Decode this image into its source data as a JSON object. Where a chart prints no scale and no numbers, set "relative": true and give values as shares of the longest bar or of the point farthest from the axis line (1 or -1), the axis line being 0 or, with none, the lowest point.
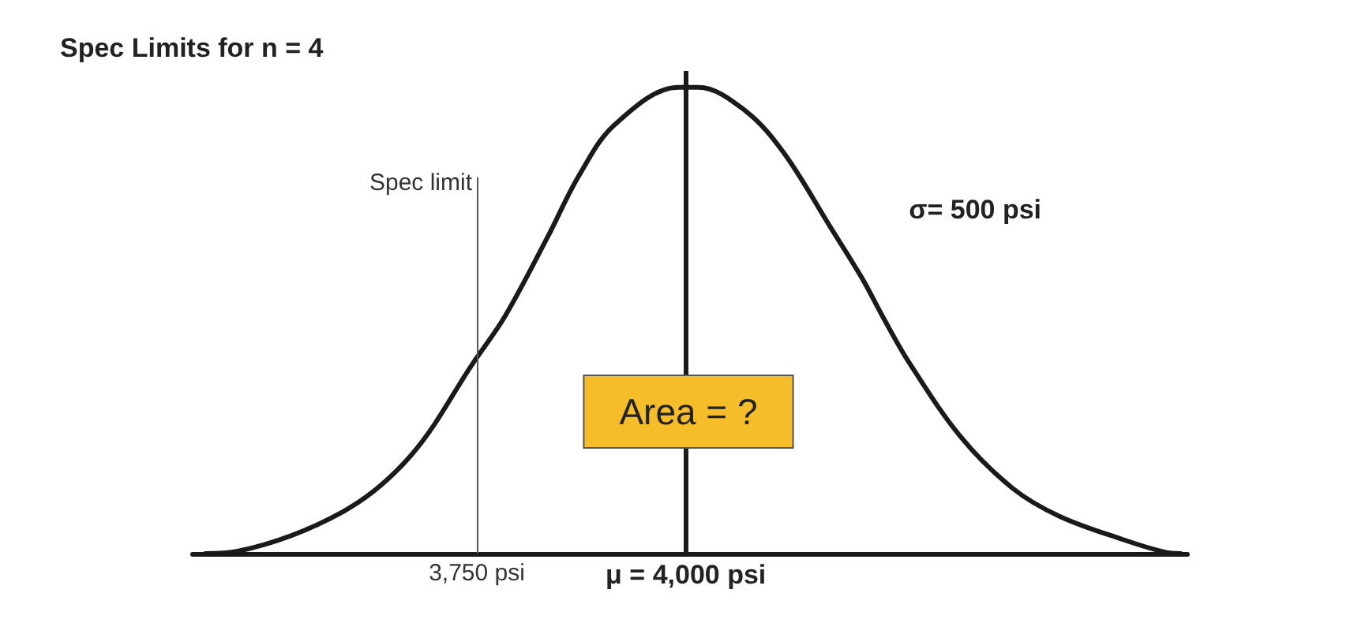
{
  "chart_data": {
    "type": "line",
    "title": "Spec Limits for n = 4",
    "x": [
      3425,
      3464,
      3590,
      3671,
      3746,
      3784,
      3835,
      3872,
      3915,
      3991,
      4015,
      4071,
      4117,
      4173,
      4211,
      4235,
      4267,
      4329,
      4391,
      4447,
      4523,
      4573,
      4592
    ],
    "values": [
      0,
      0.005,
      0.09,
      0.21,
      0.41,
      0.51,
      0.68,
      0.81,
      0.92,
      1,
      1,
      0.95,
      0.86,
      0.7,
      0.59,
      0.51,
      0.41,
      0.25,
      0.14,
      0.08,
      0.03,
      0.003,
      0
    ],
    "color": "#1a1a1a",
    "relative": true,
    "xlim": [
      3410,
      4600
    ],
    "xticks": [
      {
        "value": 3750,
        "label": "3,750 psi"
      },
      {
        "value": 4000,
        "label": "μ = 4,000 psi"
      }
    ],
    "ref_lines": [
      {
        "axis": "x",
        "value": 3750,
        "label": "Spec limit",
        "color": "#555555"
      },
      {
        "axis": "x",
        "value": 4000,
        "color": "#1a1a1a"
      }
    ],
    "annotations": [
      "σ= 500 psi",
      "Area = ?"
    ],
    "grid": false,
    "marker": "none",
    "line_style": "solid"
  }
}
